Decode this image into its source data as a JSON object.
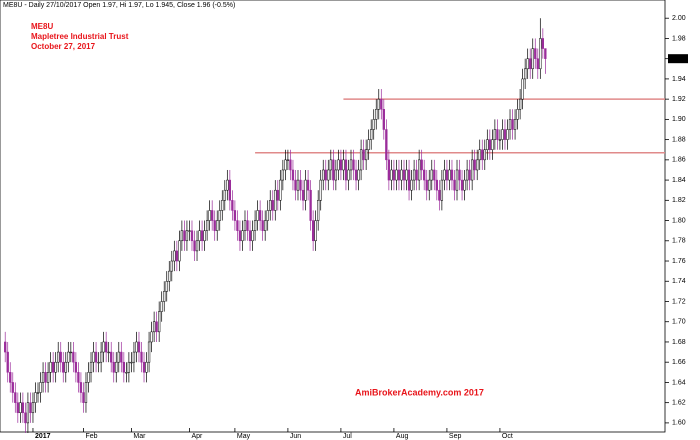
{
  "chart_data": {
    "type": "candlestick",
    "title": "ME8U - Daily 27/10/2017 Open 1.97, Hi 1.97, Lo 1.945, Close 1.96 (-0.5%)",
    "annotations": [
      "ME8U",
      "Mapletree Industrial Trust",
      "October 27, 2017"
    ],
    "watermark": "AmiBrokerAcademy.com  2017",
    "last_price_label": "1.96",
    "up_color": "#ffffff",
    "outline_color": "#000000",
    "down_color": "#9b2c9b",
    "line_color": "#e08a8a",
    "lines": [
      {
        "value": 1.92,
        "from": 134
      },
      {
        "value": 1.867,
        "from": 99
      }
    ],
    "xlim": [
      -2.06,
      261.4
    ],
    "xticks": [
      {
        "value": 11,
        "label": "2017"
      },
      {
        "value": 31,
        "label": "Feb"
      },
      {
        "value": 50,
        "label": "Mar"
      },
      {
        "value": 73,
        "label": "Apr"
      },
      {
        "value": 91,
        "label": "May"
      },
      {
        "value": 112,
        "label": "Jun"
      },
      {
        "value": 133,
        "label": "Jul"
      },
      {
        "value": 154,
        "label": "Aug"
      },
      {
        "value": 175,
        "label": "Sep"
      },
      {
        "value": 196,
        "label": "Oct"
      }
    ],
    "ylim": [
      1.591,
      2.018
    ],
    "yticks": [
      {
        "value": 1.6,
        "label": "1.60"
      },
      {
        "value": 1.62,
        "label": "1.62"
      },
      {
        "value": 1.64,
        "label": "1.64"
      },
      {
        "value": 1.66,
        "label": "1.66"
      },
      {
        "value": 1.68,
        "label": "1.68"
      },
      {
        "value": 1.7,
        "label": "1.70"
      },
      {
        "value": 1.72,
        "label": "1.72"
      },
      {
        "value": 1.74,
        "label": "1.74"
      },
      {
        "value": 1.76,
        "label": "1.76"
      },
      {
        "value": 1.78,
        "label": "1.78"
      },
      {
        "value": 1.8,
        "label": "1.80"
      },
      {
        "value": 1.82,
        "label": "1.82"
      },
      {
        "value": 1.84,
        "label": "1.84"
      },
      {
        "value": 1.86,
        "label": "1.86"
      },
      {
        "value": 1.88,
        "label": "1.88"
      },
      {
        "value": 1.9,
        "label": "1.90"
      },
      {
        "value": 1.92,
        "label": "1.92"
      },
      {
        "value": 1.94,
        "label": "1.94"
      },
      {
        "value": 1.96,
        "label": "1.96"
      },
      {
        "value": 1.98,
        "label": "1.98"
      },
      {
        "value": 2.0,
        "label": "2.00"
      }
    ],
    "open": [
      1.68,
      1.67,
      1.65,
      1.64,
      1.63,
      1.62,
      1.61,
      1.62,
      1.61,
      1.6,
      1.62,
      1.61,
      1.62,
      1.63,
      1.63,
      1.64,
      1.65,
      1.64,
      1.65,
      1.66,
      1.65,
      1.66,
      1.67,
      1.66,
      1.65,
      1.66,
      1.67,
      1.67,
      1.66,
      1.65,
      1.64,
      1.63,
      1.62,
      1.64,
      1.65,
      1.66,
      1.67,
      1.66,
      1.66,
      1.67,
      1.68,
      1.67,
      1.67,
      1.66,
      1.65,
      1.66,
      1.67,
      1.66,
      1.65,
      1.65,
      1.66,
      1.66,
      1.67,
      1.68,
      1.67,
      1.66,
      1.65,
      1.66,
      1.68,
      1.69,
      1.7,
      1.69,
      1.71,
      1.72,
      1.73,
      1.74,
      1.75,
      1.76,
      1.77,
      1.76,
      1.78,
      1.79,
      1.78,
      1.79,
      1.79,
      1.78,
      1.77,
      1.78,
      1.79,
      1.78,
      1.79,
      1.8,
      1.81,
      1.8,
      1.79,
      1.8,
      1.81,
      1.82,
      1.83,
      1.84,
      1.82,
      1.81,
      1.8,
      1.79,
      1.78,
      1.79,
      1.8,
      1.79,
      1.78,
      1.79,
      1.8,
      1.81,
      1.8,
      1.79,
      1.8,
      1.81,
      1.82,
      1.81,
      1.83,
      1.82,
      1.84,
      1.85,
      1.86,
      1.86,
      1.85,
      1.84,
      1.83,
      1.84,
      1.83,
      1.82,
      1.84,
      1.83,
      1.8,
      1.78,
      1.8,
      1.82,
      1.84,
      1.85,
      1.84,
      1.85,
      1.86,
      1.84,
      1.85,
      1.86,
      1.85,
      1.86,
      1.84,
      1.85,
      1.86,
      1.85,
      1.84,
      1.85,
      1.87,
      1.86,
      1.87,
      1.88,
      1.89,
      1.9,
      1.91,
      1.92,
      1.91,
      1.89,
      1.86,
      1.84,
      1.85,
      1.84,
      1.85,
      1.84,
      1.85,
      1.84,
      1.85,
      1.83,
      1.84,
      1.85,
      1.84,
      1.86,
      1.85,
      1.84,
      1.83,
      1.84,
      1.85,
      1.84,
      1.83,
      1.82,
      1.84,
      1.85,
      1.84,
      1.85,
      1.84,
      1.83,
      1.85,
      1.84,
      1.83,
      1.84,
      1.85,
      1.84,
      1.86,
      1.85,
      1.86,
      1.87,
      1.86,
      1.87,
      1.88,
      1.87,
      1.88,
      1.89,
      1.88,
      1.88,
      1.89,
      1.88,
      1.89,
      1.9,
      1.89,
      1.9,
      1.91,
      1.92,
      1.94,
      1.95,
      1.96,
      1.95,
      1.97,
      1.96,
      1.95,
      1.98,
      1.97
    ],
    "high": [
      1.69,
      1.68,
      1.66,
      1.65,
      1.64,
      1.63,
      1.63,
      1.63,
      1.62,
      1.63,
      1.63,
      1.63,
      1.64,
      1.64,
      1.65,
      1.66,
      1.66,
      1.66,
      1.67,
      1.67,
      1.67,
      1.68,
      1.68,
      1.67,
      1.67,
      1.68,
      1.68,
      1.68,
      1.67,
      1.66,
      1.65,
      1.64,
      1.65,
      1.66,
      1.67,
      1.68,
      1.68,
      1.67,
      1.68,
      1.69,
      1.69,
      1.68,
      1.68,
      1.67,
      1.67,
      1.68,
      1.68,
      1.67,
      1.66,
      1.67,
      1.67,
      1.68,
      1.69,
      1.69,
      1.68,
      1.67,
      1.67,
      1.69,
      1.7,
      1.71,
      1.71,
      1.72,
      1.73,
      1.74,
      1.75,
      1.76,
      1.77,
      1.78,
      1.78,
      1.79,
      1.8,
      1.8,
      1.8,
      1.8,
      1.8,
      1.79,
      1.79,
      1.8,
      1.8,
      1.8,
      1.81,
      1.82,
      1.82,
      1.81,
      1.81,
      1.82,
      1.83,
      1.84,
      1.85,
      1.85,
      1.83,
      1.82,
      1.81,
      1.8,
      1.8,
      1.81,
      1.81,
      1.8,
      1.8,
      1.81,
      1.82,
      1.82,
      1.81,
      1.81,
      1.82,
      1.83,
      1.83,
      1.84,
      1.84,
      1.85,
      1.86,
      1.87,
      1.87,
      1.87,
      1.86,
      1.85,
      1.85,
      1.85,
      1.84,
      1.85,
      1.85,
      1.84,
      1.81,
      1.81,
      1.83,
      1.85,
      1.86,
      1.86,
      1.86,
      1.87,
      1.87,
      1.86,
      1.87,
      1.87,
      1.87,
      1.87,
      1.86,
      1.87,
      1.87,
      1.86,
      1.86,
      1.88,
      1.88,
      1.88,
      1.89,
      1.9,
      1.91,
      1.92,
      1.93,
      1.93,
      1.92,
      1.9,
      1.87,
      1.86,
      1.86,
      1.86,
      1.86,
      1.86,
      1.86,
      1.86,
      1.86,
      1.85,
      1.86,
      1.86,
      1.87,
      1.87,
      1.86,
      1.85,
      1.85,
      1.86,
      1.86,
      1.85,
      1.84,
      1.85,
      1.86,
      1.86,
      1.86,
      1.86,
      1.85,
      1.86,
      1.86,
      1.85,
      1.85,
      1.86,
      1.86,
      1.87,
      1.87,
      1.87,
      1.88,
      1.88,
      1.88,
      1.89,
      1.89,
      1.89,
      1.9,
      1.9,
      1.89,
      1.9,
      1.9,
      1.9,
      1.91,
      1.91,
      1.91,
      1.92,
      1.93,
      1.95,
      1.96,
      1.97,
      1.97,
      1.98,
      1.98,
      1.97,
      2.0,
      1.99,
      1.97
    ],
    "low": [
      1.66,
      1.64,
      1.63,
      1.62,
      1.61,
      1.6,
      1.6,
      1.6,
      1.59,
      1.59,
      1.6,
      1.6,
      1.61,
      1.62,
      1.62,
      1.63,
      1.63,
      1.63,
      1.64,
      1.64,
      1.64,
      1.65,
      1.65,
      1.64,
      1.64,
      1.65,
      1.66,
      1.65,
      1.64,
      1.63,
      1.62,
      1.61,
      1.61,
      1.63,
      1.64,
      1.65,
      1.65,
      1.65,
      1.65,
      1.66,
      1.66,
      1.66,
      1.65,
      1.64,
      1.64,
      1.65,
      1.65,
      1.64,
      1.64,
      1.64,
      1.65,
      1.65,
      1.66,
      1.66,
      1.65,
      1.64,
      1.64,
      1.65,
      1.67,
      1.68,
      1.68,
      1.68,
      1.7,
      1.71,
      1.72,
      1.73,
      1.74,
      1.75,
      1.75,
      1.75,
      1.77,
      1.77,
      1.77,
      1.78,
      1.77,
      1.76,
      1.76,
      1.77,
      1.77,
      1.77,
      1.78,
      1.79,
      1.79,
      1.78,
      1.78,
      1.79,
      1.8,
      1.81,
      1.82,
      1.81,
      1.8,
      1.79,
      1.78,
      1.77,
      1.77,
      1.78,
      1.78,
      1.77,
      1.77,
      1.78,
      1.79,
      1.79,
      1.78,
      1.78,
      1.79,
      1.8,
      1.8,
      1.8,
      1.81,
      1.81,
      1.83,
      1.84,
      1.85,
      1.84,
      1.83,
      1.82,
      1.82,
      1.82,
      1.81,
      1.81,
      1.82,
      1.79,
      1.77,
      1.77,
      1.79,
      1.81,
      1.83,
      1.83,
      1.83,
      1.84,
      1.83,
      1.83,
      1.84,
      1.84,
      1.84,
      1.83,
      1.83,
      1.84,
      1.84,
      1.83,
      1.83,
      1.84,
      1.85,
      1.85,
      1.86,
      1.87,
      1.88,
      1.89,
      1.9,
      1.9,
      1.88,
      1.85,
      1.83,
      1.83,
      1.83,
      1.83,
      1.83,
      1.83,
      1.83,
      1.83,
      1.82,
      1.82,
      1.83,
      1.83,
      1.83,
      1.84,
      1.83,
      1.82,
      1.82,
      1.83,
      1.83,
      1.82,
      1.81,
      1.81,
      1.83,
      1.83,
      1.83,
      1.83,
      1.82,
      1.82,
      1.83,
      1.82,
      1.82,
      1.83,
      1.83,
      1.83,
      1.84,
      1.84,
      1.85,
      1.85,
      1.85,
      1.86,
      1.86,
      1.86,
      1.87,
      1.87,
      1.87,
      1.87,
      1.87,
      1.87,
      1.88,
      1.88,
      1.88,
      1.89,
      1.9,
      1.91,
      1.93,
      1.94,
      1.94,
      1.94,
      1.95,
      1.94,
      1.94,
      1.96,
      1.945
    ],
    "close": [
      1.67,
      1.65,
      1.64,
      1.63,
      1.62,
      1.61,
      1.62,
      1.61,
      1.6,
      1.62,
      1.61,
      1.62,
      1.63,
      1.63,
      1.64,
      1.65,
      1.64,
      1.65,
      1.66,
      1.65,
      1.66,
      1.67,
      1.66,
      1.65,
      1.66,
      1.67,
      1.67,
      1.66,
      1.65,
      1.64,
      1.63,
      1.62,
      1.64,
      1.65,
      1.66,
      1.67,
      1.66,
      1.66,
      1.67,
      1.68,
      1.67,
      1.67,
      1.66,
      1.65,
      1.66,
      1.67,
      1.66,
      1.65,
      1.65,
      1.66,
      1.66,
      1.67,
      1.68,
      1.67,
      1.66,
      1.65,
      1.66,
      1.68,
      1.69,
      1.7,
      1.69,
      1.71,
      1.72,
      1.73,
      1.74,
      1.75,
      1.76,
      1.77,
      1.76,
      1.78,
      1.79,
      1.78,
      1.79,
      1.79,
      1.78,
      1.77,
      1.78,
      1.79,
      1.78,
      1.79,
      1.8,
      1.81,
      1.8,
      1.79,
      1.8,
      1.81,
      1.82,
      1.83,
      1.84,
      1.82,
      1.81,
      1.8,
      1.79,
      1.78,
      1.79,
      1.8,
      1.79,
      1.78,
      1.79,
      1.8,
      1.81,
      1.8,
      1.79,
      1.8,
      1.81,
      1.82,
      1.81,
      1.83,
      1.82,
      1.84,
      1.85,
      1.86,
      1.86,
      1.85,
      1.84,
      1.83,
      1.84,
      1.83,
      1.82,
      1.84,
      1.83,
      1.8,
      1.78,
      1.8,
      1.82,
      1.84,
      1.85,
      1.84,
      1.85,
      1.86,
      1.84,
      1.85,
      1.86,
      1.85,
      1.86,
      1.84,
      1.85,
      1.86,
      1.85,
      1.84,
      1.85,
      1.87,
      1.86,
      1.87,
      1.88,
      1.89,
      1.9,
      1.91,
      1.92,
      1.91,
      1.89,
      1.86,
      1.84,
      1.85,
      1.84,
      1.85,
      1.84,
      1.85,
      1.84,
      1.85,
      1.83,
      1.84,
      1.85,
      1.84,
      1.86,
      1.85,
      1.84,
      1.83,
      1.84,
      1.85,
      1.84,
      1.83,
      1.82,
      1.84,
      1.85,
      1.84,
      1.85,
      1.84,
      1.83,
      1.85,
      1.84,
      1.83,
      1.84,
      1.85,
      1.84,
      1.86,
      1.85,
      1.86,
      1.87,
      1.86,
      1.87,
      1.88,
      1.87,
      1.88,
      1.89,
      1.88,
      1.88,
      1.89,
      1.88,
      1.89,
      1.9,
      1.89,
      1.9,
      1.91,
      1.92,
      1.94,
      1.95,
      1.96,
      1.95,
      1.97,
      1.96,
      1.95,
      1.98,
      1.97,
      1.96
    ]
  }
}
